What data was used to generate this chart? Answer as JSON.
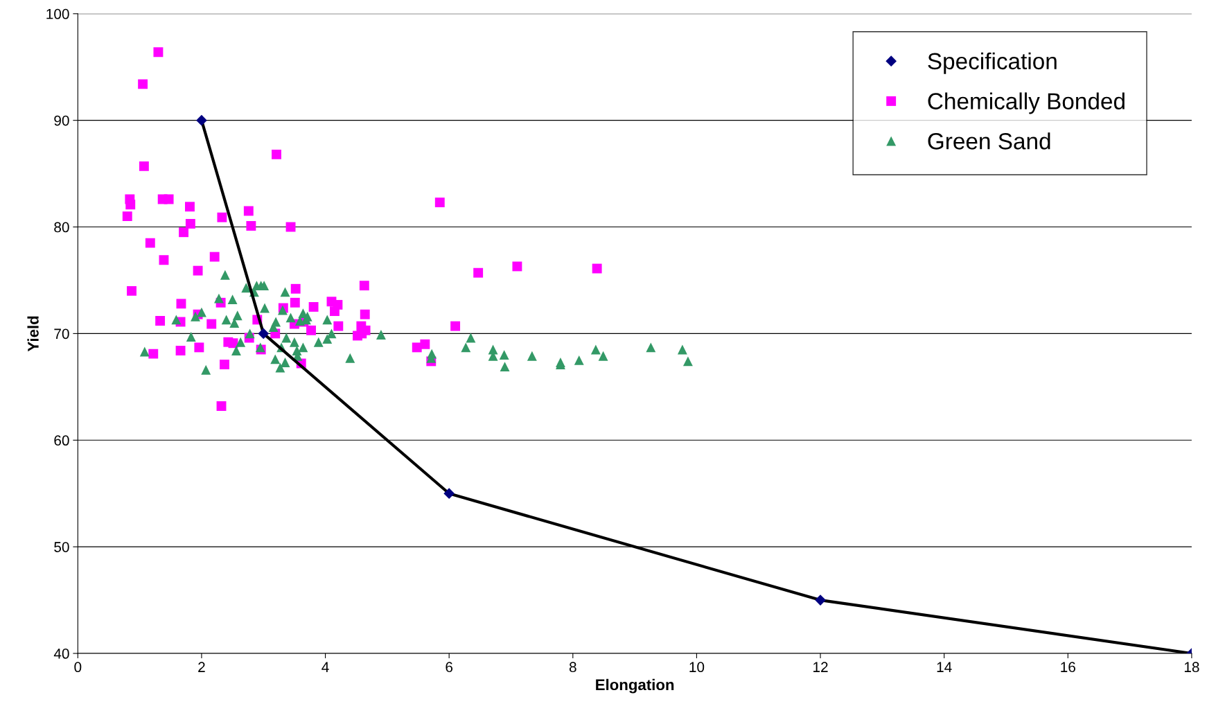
{
  "chart_data": {
    "type": "scatter",
    "xlabel": "Elongation",
    "ylabel": "Yield",
    "xlim": [
      0,
      18
    ],
    "xticks": [
      0,
      2,
      4,
      6,
      8,
      10,
      12,
      14,
      16,
      18
    ],
    "ylim": [
      40,
      100
    ],
    "yticks": [
      40,
      50,
      60,
      70,
      80,
      90,
      100
    ],
    "grid": "y",
    "legend": "top right",
    "series": [
      {
        "type": "line",
        "color": "#000000",
        "marker": "none",
        "line_style": "solid",
        "x": [
          2,
          3,
          6,
          12,
          18
        ],
        "values": [
          90,
          70,
          55,
          45,
          40
        ]
      },
      {
        "name": "Specification",
        "color": "#000080",
        "marker": "diamond",
        "x": [
          2,
          3,
          6,
          12,
          18
        ],
        "values": [
          90,
          70,
          55,
          45,
          40
        ]
      },
      {
        "name": "Chemically Bonded",
        "color": "#ff00ff",
        "marker": "square",
        "x": [
          1.3,
          1.05,
          1.07,
          3.21,
          5.85,
          0.84,
          0.85,
          0.8,
          1.37,
          1.47,
          1.81,
          1.82,
          1.71,
          2.33,
          2.76,
          2.8,
          3.44,
          1.17,
          1.39,
          2.21,
          1.94,
          6.47,
          7.1,
          8.39,
          0.87,
          4.63,
          3.52,
          1.67,
          2.31,
          3.32,
          3.51,
          3.81,
          4.1,
          4.2,
          4.15,
          4.64,
          1.33,
          1.66,
          1.94,
          2.16,
          2.9,
          4.21,
          6.1,
          3.5,
          3.65,
          3.77,
          4.52,
          4.59,
          4.65,
          4.58,
          1.22,
          1.66,
          1.96,
          2.43,
          2.77,
          2.96,
          2.51,
          5.48,
          5.61,
          5.71,
          3.61,
          2.37,
          2.32,
          3.19
        ],
        "values": [
          96.4,
          93.4,
          85.7,
          86.8,
          82.3,
          82.6,
          82.1,
          81.0,
          82.6,
          82.6,
          81.9,
          80.3,
          79.5,
          80.9,
          81.5,
          80.1,
          80.0,
          78.5,
          76.9,
          77.2,
          75.9,
          75.7,
          76.3,
          76.1,
          74.0,
          74.5,
          74.2,
          72.8,
          72.9,
          72.4,
          72.9,
          72.5,
          73.0,
          72.7,
          72.1,
          71.8,
          71.2,
          71.1,
          71.8,
          70.9,
          71.3,
          70.7,
          70.7,
          70.9,
          71.1,
          70.3,
          69.8,
          70.0,
          70.3,
          70.7,
          68.1,
          68.4,
          68.7,
          69.2,
          69.6,
          68.5,
          69.1,
          68.7,
          69.0,
          67.4,
          67.2,
          67.1,
          63.2,
          70.0
        ]
      },
      {
        "name": "Green Sand",
        "color": "#339966",
        "marker": "triangle",
        "x": [
          1.08,
          1.59,
          1.83,
          1.9,
          2.0,
          2.07,
          2.28,
          2.38,
          2.4,
          2.5,
          2.53,
          2.58,
          2.56,
          2.63,
          2.72,
          2.78,
          2.85,
          2.89,
          2.96,
          3.01,
          3.02,
          2.95,
          3.16,
          3.2,
          3.19,
          3.27,
          3.29,
          3.35,
          3.35,
          3.31,
          3.37,
          3.44,
          3.5,
          3.54,
          3.55,
          3.59,
          3.64,
          3.69,
          3.71,
          3.64,
          3.89,
          4.03,
          4.03,
          4.1,
          4.4,
          4.9,
          5.72,
          5.71,
          6.27,
          6.35,
          6.71,
          6.71,
          6.89,
          6.9,
          7.34,
          7.8,
          7.8,
          8.1,
          8.37,
          8.49,
          9.26,
          9.77,
          9.86
        ],
        "values": [
          68.3,
          71.3,
          69.7,
          71.6,
          72.0,
          66.6,
          73.3,
          75.5,
          71.3,
          73.2,
          71.0,
          71.7,
          68.4,
          69.2,
          74.3,
          70.0,
          73.9,
          74.5,
          74.5,
          74.5,
          72.4,
          68.7,
          70.6,
          71.1,
          67.6,
          66.8,
          68.7,
          73.9,
          67.3,
          72.2,
          69.6,
          71.5,
          69.2,
          68.4,
          67.9,
          71.2,
          71.9,
          71.3,
          71.6,
          68.7,
          69.2,
          71.3,
          69.5,
          70.0,
          67.7,
          69.9,
          68.1,
          67.7,
          68.7,
          69.6,
          68.5,
          67.9,
          68.0,
          66.9,
          67.9,
          67.3,
          67.1,
          67.5,
          68.5,
          67.9,
          68.7,
          68.5,
          67.4
        ]
      }
    ]
  }
}
